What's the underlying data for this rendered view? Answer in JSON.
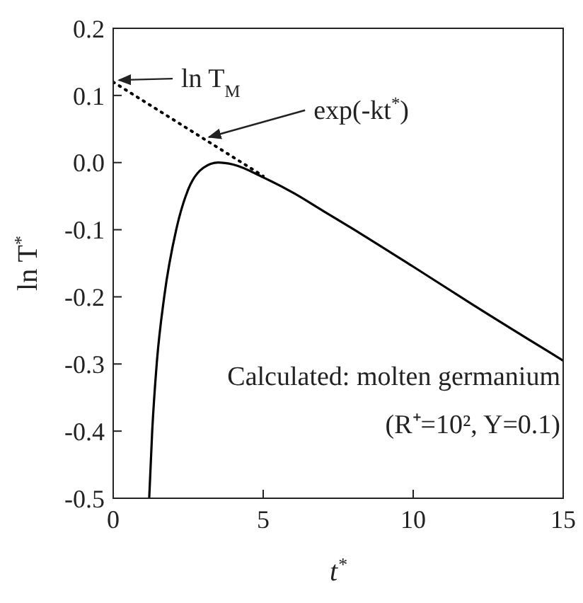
{
  "chart_data": {
    "type": "line",
    "xlabel": "t$^{*}$",
    "ylabel": "ln T$^{*}$",
    "xlim": [
      0,
      15
    ],
    "xticks": [
      0,
      5,
      10,
      15
    ],
    "ylim": [
      -0.5,
      0.2
    ],
    "yticks": [
      -0.5,
      -0.4,
      -0.3,
      -0.2,
      -0.1,
      {
        "value": 0,
        "label": "0.0"
      },
      0.1,
      0.2
    ],
    "marker": "none",
    "series": [
      {
        "color": "#000000",
        "line_style": "solid",
        "x": [
          1.2,
          1.3,
          1.45,
          1.7,
          2.1,
          2.5,
          3,
          3.5,
          4,
          5,
          6,
          7,
          8,
          10,
          12,
          15
        ],
        "values": [
          -0.5,
          -0.4,
          -0.3,
          -0.2,
          -0.1,
          -0.04,
          -0.008,
          0,
          -0.003,
          -0.022,
          -0.045,
          -0.072,
          -0.099,
          -0.155,
          -0.212,
          -0.295
        ]
      },
      {
        "color": "#000000",
        "line_style": "dotted",
        "x": [
          0,
          5
        ],
        "values": [
          0.12,
          -0.02
        ]
      }
    ],
    "annotations": [
      {
        "text": "ln T$_{M}$",
        "x": 0,
        "y": 0.125
      },
      {
        "text": "exp(-kt$^{*}$)",
        "x": 3,
        "y": 0.04
      },
      "Calculated: molten germanium",
      "(R⁺=10², Y=0.1)"
    ]
  }
}
